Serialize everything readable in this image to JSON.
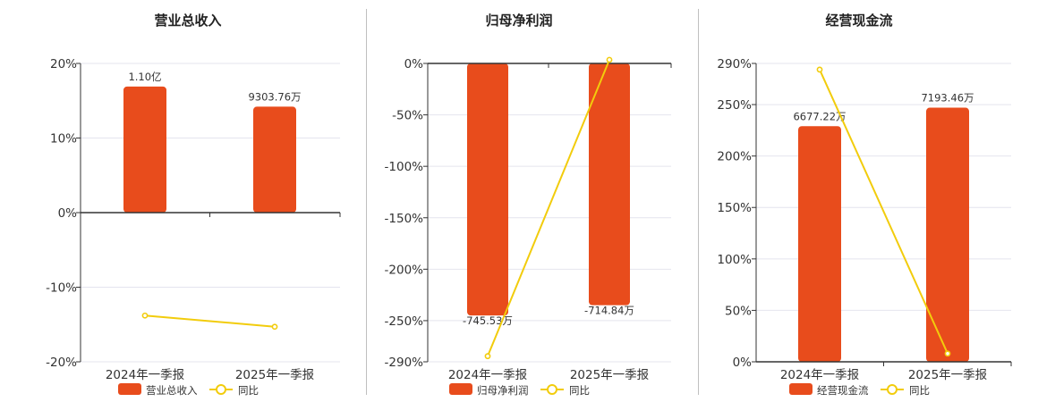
{
  "colors": {
    "bar": "#e84c1c",
    "line": "#f2cc0c",
    "grid": "#e4e4ee",
    "axis": "#333333"
  },
  "chart_data": [
    {
      "type": "bar",
      "title": "营业总收入",
      "categories": [
        "2024年一季报",
        "2025年一季报"
      ],
      "ylim": [
        -20,
        20
      ],
      "yticks": [
        20,
        10,
        0,
        -10,
        -20
      ],
      "tick_labels": [
        "20%",
        "10%",
        "0%",
        "-10%",
        "-20%"
      ],
      "zero_tick": 0,
      "series": [
        {
          "name": "营业总收入",
          "kind": "bar",
          "values": [
            16.9,
            14.2
          ],
          "labels": [
            "1.10亿",
            "9303.76万"
          ]
        },
        {
          "name": "同比",
          "kind": "line",
          "values": [
            -13.8,
            -15.3
          ]
        }
      ],
      "legend": "bottom"
    },
    {
      "type": "bar",
      "title": "归母净利润",
      "categories": [
        "2024年一季报",
        "2025年一季报"
      ],
      "ylim": [
        -290,
        10
      ],
      "yticks": [
        0,
        -50,
        -100,
        -150,
        -200,
        -250,
        -290
      ],
      "tick_labels": [
        "0%",
        "-50%",
        "-100%",
        "-150%",
        "-200%",
        "-250%",
        "-290%"
      ],
      "zero_tick": 0,
      "series": [
        {
          "name": "归母净利润",
          "kind": "bar",
          "values": [
            -245,
            -235
          ],
          "labels": [
            "-745.53万",
            "-714.84万"
          ]
        },
        {
          "name": "同比",
          "kind": "line",
          "values": [
            -284.5,
            3.5
          ]
        }
      ],
      "legend": "bottom"
    },
    {
      "type": "bar",
      "title": "经营现金流",
      "categories": [
        "2024年一季报",
        "2025年一季报"
      ],
      "ylim": [
        0,
        290
      ],
      "yticks": [
        290,
        250,
        200,
        150,
        100,
        50,
        0
      ],
      "tick_labels": [
        "290%",
        "250%",
        "200%",
        "150%",
        "100%",
        "50%",
        "0%"
      ],
      "zero_tick": 0,
      "series": [
        {
          "name": "经营现金流",
          "kind": "bar",
          "values": [
            229,
            247
          ],
          "labels": [
            "6677.22万",
            "7193.46万"
          ]
        },
        {
          "name": "同比",
          "kind": "line",
          "values": [
            284,
            8
          ]
        }
      ],
      "legend": "bottom"
    }
  ]
}
